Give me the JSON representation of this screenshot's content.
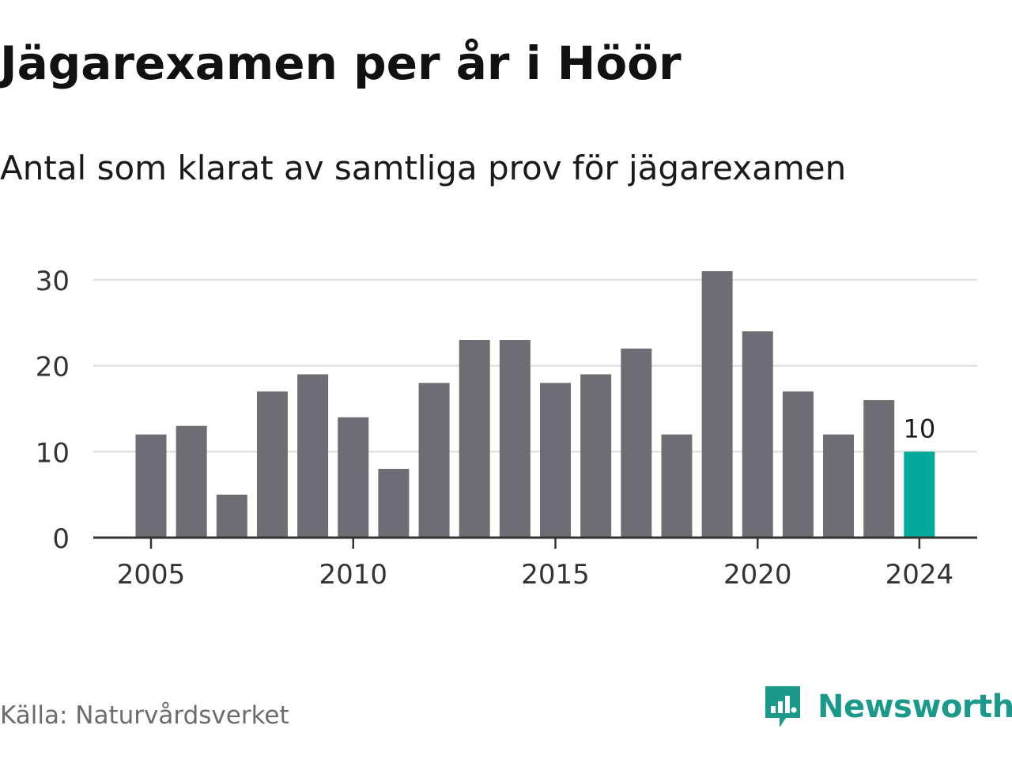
{
  "title": "Jägarexamen per år i Höör",
  "subtitle": "Antal som klarat av samtliga prov för jägarexamen",
  "source": "Källa: Naturvårdsverket",
  "brand": "Newsworthy",
  "colors": {
    "bar": "#6e6d74",
    "highlight": "#00a99a",
    "grid": "#e2e2e2",
    "axis": "#333333",
    "brand": "#1b9a8c"
  },
  "chart_data": {
    "type": "bar",
    "categories": [
      2005,
      2006,
      2007,
      2008,
      2009,
      2010,
      2011,
      2012,
      2013,
      2014,
      2015,
      2016,
      2017,
      2018,
      2019,
      2020,
      2021,
      2022,
      2023,
      2024
    ],
    "values": [
      12,
      13,
      5,
      17,
      19,
      14,
      8,
      18,
      23,
      23,
      18,
      19,
      22,
      12,
      31,
      24,
      17,
      12,
      16,
      10
    ],
    "x_tick_labels": [
      "2005",
      "2010",
      "2015",
      "2020",
      "2024"
    ],
    "y_ticks": [
      0,
      10,
      20,
      30
    ],
    "ylim": [
      0,
      31
    ],
    "grid": true,
    "highlight_category": 2024,
    "data_labels": [
      {
        "category": 2024,
        "text": "10"
      }
    ]
  }
}
